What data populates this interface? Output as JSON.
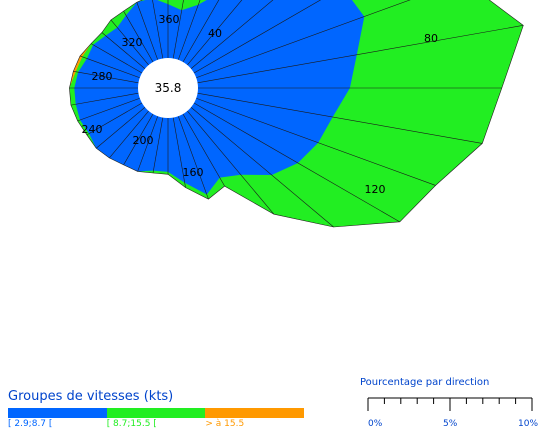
{
  "chart_data": {
    "type": "polar-area",
    "center_value": "35.8",
    "direction_labels": [
      "360",
      "40",
      "80",
      "120",
      "160",
      "200",
      "240",
      "280",
      "320"
    ],
    "radial_scale_max_percent": 10,
    "bin_names": [
      "[ 2.9;8.7 [",
      "[ 8.7;15.5 [",
      "> à 15.5"
    ],
    "series": [
      {
        "name": "[ 2.9;8.7 [",
        "color": "#0066ff",
        "directions": [
          0,
          10,
          20,
          30,
          40,
          50,
          60,
          70,
          80,
          90,
          100,
          110,
          120,
          130,
          140,
          150,
          160,
          170,
          180,
          190,
          200,
          210,
          220,
          230,
          240,
          250,
          260,
          270,
          280,
          290,
          300,
          310,
          320,
          330,
          340,
          350
        ],
        "values": [
          2.2,
          2.0,
          2.4,
          3.4,
          4.3,
          5.2,
          7.0,
          7.3,
          6.6,
          6.2,
          5.6,
          5.3,
          4.9,
          4.3,
          3.4,
          3.0,
          3.4,
          2.7,
          2.2,
          2.2,
          2.4,
          2.4,
          2.5,
          2.6,
          2.5,
          2.6,
          2.6,
          2.6,
          2.5,
          2.3,
          2.3,
          2.1,
          2.0,
          2.2,
          2.5,
          2.5
        ]
      },
      {
        "name": "[ 8.7;15.5 [",
        "color": "#22ee22",
        "directions": [
          0,
          10,
          20,
          30,
          40,
          50,
          60,
          70,
          80,
          90,
          100,
          110,
          120,
          130,
          140,
          150,
          160,
          170,
          180,
          190,
          200,
          210,
          220,
          230,
          240,
          250,
          260,
          270,
          280,
          290,
          300,
          310,
          320,
          330,
          340,
          350
        ],
        "values": [
          2.4,
          2.5,
          2.7,
          4.0,
          5.6,
          7.5,
          9.6,
          11.6,
          13.5,
          12.4,
          11.8,
          10.4,
          9.7,
          7.6,
          5.5,
          3.4,
          3.6,
          2.9,
          2.3,
          2.3,
          2.4,
          2.4,
          2.5,
          2.6,
          2.6,
          2.7,
          2.8,
          2.8,
          2.6,
          2.5,
          2.4,
          2.3,
          2.4,
          2.4,
          2.5,
          2.6
        ]
      },
      {
        "name": "> à 15.5",
        "color": "#ff9900",
        "directions": [
          0,
          10,
          20,
          30,
          40,
          50,
          60,
          70,
          80,
          90,
          100,
          110,
          120,
          130,
          140,
          150,
          160,
          170,
          180,
          190,
          200,
          210,
          220,
          230,
          240,
          250,
          260,
          270,
          280,
          290,
          300,
          310,
          320,
          330,
          340,
          350
        ],
        "values": [
          2.4,
          2.5,
          2.7,
          4.0,
          5.6,
          7.5,
          9.6,
          11.6,
          13.5,
          12.4,
          11.8,
          10.4,
          9.7,
          7.6,
          5.5,
          3.4,
          3.6,
          2.9,
          2.3,
          2.3,
          2.4,
          2.4,
          2.5,
          2.6,
          2.6,
          2.7,
          2.8,
          2.8,
          2.7,
          2.6,
          2.4,
          2.3,
          2.4,
          2.4,
          2.5,
          2.6
        ]
      }
    ]
  },
  "legend": {
    "title": "Groupes de vitesses (kts)",
    "bins": [
      {
        "label": "[ 2.9;8.7 [",
        "color": "#0066ff"
      },
      {
        "label": "[ 8.7;15.5 [",
        "color": "#22ee22"
      },
      {
        "label": "> à 15.5",
        "color": "#ff9900"
      }
    ]
  },
  "scale": {
    "title": "Pourcentage par direction",
    "ticks": [
      "0%",
      "5%",
      "10%"
    ]
  }
}
